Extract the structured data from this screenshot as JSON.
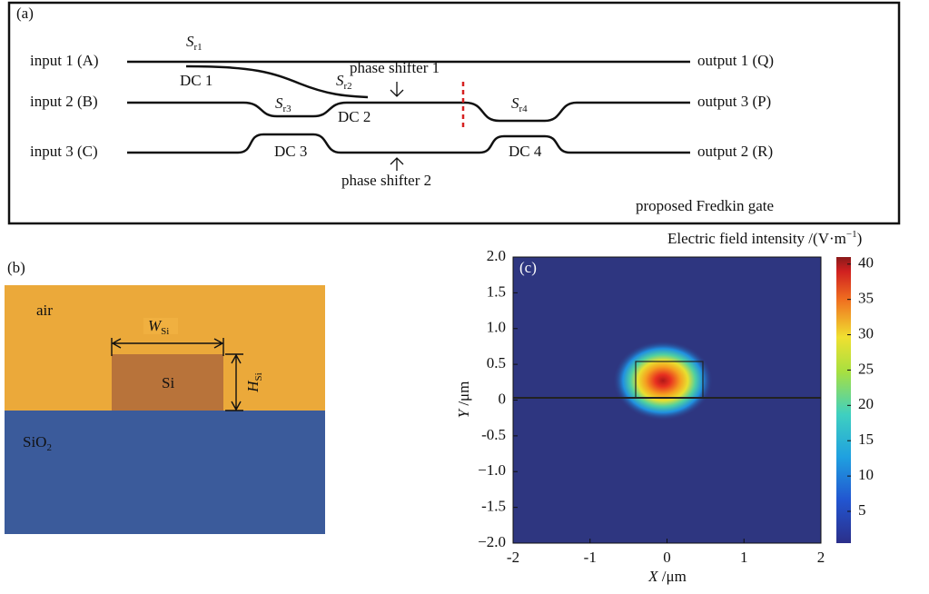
{
  "panel_a": {
    "label": "(a)",
    "inputs": [
      "input 1 (A)",
      "input 2 (B)",
      "input 3 (C)"
    ],
    "outputs": [
      "output 1 (Q)",
      "output 3 (P)",
      "output 2 (R)"
    ],
    "couplers": [
      "DC 1",
      "DC 2",
      "DC 3",
      "DC 4"
    ],
    "bends": [
      {
        "symbol": "S",
        "sub": "r1"
      },
      {
        "symbol": "S",
        "sub": "r2"
      },
      {
        "symbol": "S",
        "sub": "r3"
      },
      {
        "symbol": "S",
        "sub": "r4"
      }
    ],
    "shifters": [
      "phase shifter 1",
      "phase shifter 2"
    ],
    "caption": "proposed Fredkin gate"
  },
  "panel_b": {
    "label": "(b)",
    "air": "air",
    "core": "Si",
    "substrate": {
      "symbol": "SiO",
      "sub": "2"
    },
    "width": {
      "symbol": "W",
      "sub": "Si"
    },
    "height": {
      "symbol": "H",
      "sub": "Si"
    }
  },
  "panel_c": {
    "label": "(c)",
    "colorbar_title": {
      "text": "Electric field intensity /(V·m",
      "sup": "−1",
      "end": ")"
    },
    "xlabel": {
      "symbol": "X",
      "unit": " /μm"
    },
    "ylabel": {
      "symbol": "Y",
      "unit": " /μm"
    },
    "xlim": [
      -2,
      2
    ],
    "xticks": [
      -2,
      -1,
      0,
      1,
      2
    ],
    "ylim": [
      -2,
      2
    ],
    "yticks": [
      {
        "value": 2,
        "label": "2.0"
      },
      1.5,
      {
        "value": 1,
        "label": "1.0"
      },
      0.5,
      0,
      -0.5,
      {
        "value": -1,
        "label": "−1.0"
      },
      -1.5,
      {
        "value": -2,
        "label": "−2.0"
      }
    ],
    "colorbar_lim": [
      0.5,
      41
    ],
    "colorbar_ticks": [
      5,
      10,
      15,
      20,
      25,
      30,
      35,
      40
    ]
  }
}
